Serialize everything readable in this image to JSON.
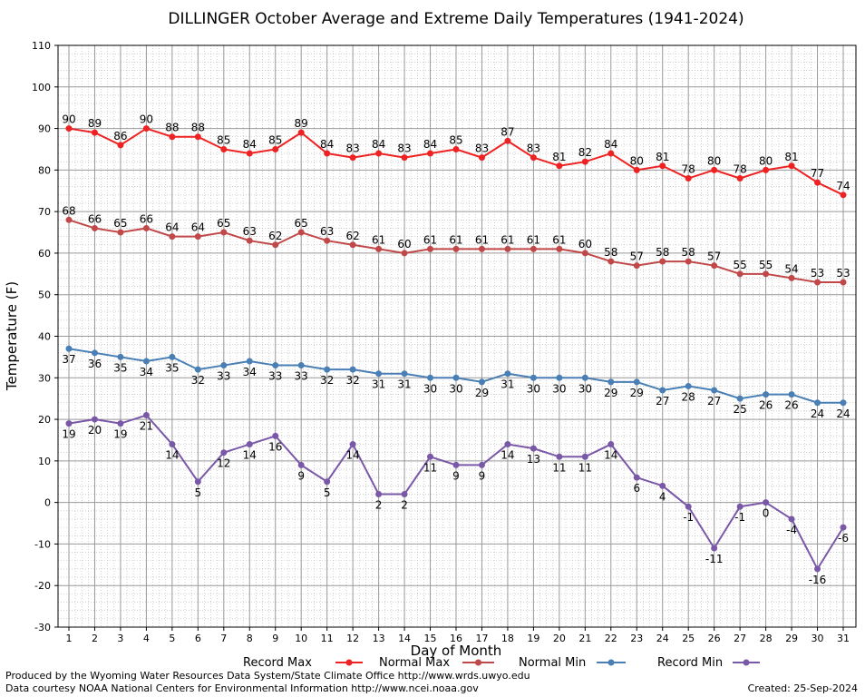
{
  "chart_data": {
    "type": "line",
    "title": "DILLINGER October Average and Extreme Daily Temperatures (1941-2024)",
    "xlabel": "Day of Month",
    "ylabel": "Temperature (F)",
    "ylim": [
      -30,
      110
    ],
    "xlim": [
      1,
      31
    ],
    "grid": true,
    "legend_position": "bottom",
    "x": [
      1,
      2,
      3,
      4,
      5,
      6,
      7,
      8,
      9,
      10,
      11,
      12,
      13,
      14,
      15,
      16,
      17,
      18,
      19,
      20,
      21,
      22,
      23,
      24,
      25,
      26,
      27,
      28,
      29,
      30,
      31
    ],
    "series": [
      {
        "name": "Record Max",
        "color": "#ee2222",
        "values": [
          90,
          89,
          86,
          90,
          88,
          88,
          85,
          84,
          85,
          89,
          84,
          83,
          84,
          83,
          84,
          85,
          83,
          87,
          83,
          81,
          82,
          84,
          80,
          81,
          78,
          80,
          78,
          80,
          81,
          77,
          74
        ]
      },
      {
        "name": "Normal Max",
        "color": "#c04848",
        "values": [
          68,
          66,
          65,
          66,
          64,
          64,
          65,
          63,
          62,
          65,
          63,
          62,
          61,
          60,
          61,
          61,
          61,
          61,
          61,
          61,
          60,
          58,
          57,
          58,
          58,
          57,
          55,
          55,
          54,
          53,
          53
        ]
      },
      {
        "name": "Normal Min",
        "color": "#4a7fb5",
        "values": [
          37,
          36,
          35,
          34,
          35,
          32,
          33,
          34,
          33,
          33,
          32,
          32,
          31,
          31,
          30,
          30,
          29,
          31,
          30,
          30,
          30,
          29,
          29,
          27,
          28,
          27,
          25,
          26,
          26,
          24,
          24
        ]
      },
      {
        "name": "Record Min",
        "color": "#7a58a8",
        "values": [
          19,
          20,
          19,
          21,
          14,
          5,
          12,
          14,
          16,
          9,
          5,
          14,
          2,
          2,
          11,
          9,
          9,
          14,
          13,
          11,
          11,
          14,
          6,
          4,
          -1,
          -11,
          -1,
          0,
          -4,
          -16,
          -6
        ]
      }
    ]
  },
  "credits": {
    "produced_by": "Produced by the Wyoming Water Resources Data System/State Climate Office http://www.wrds.uwyo.edu",
    "data_courtesy": "Data courtesy NOAA National Centers for Environmental Information http://www.ncei.noaa.gov",
    "created": "Created:  25-Sep-2024"
  }
}
